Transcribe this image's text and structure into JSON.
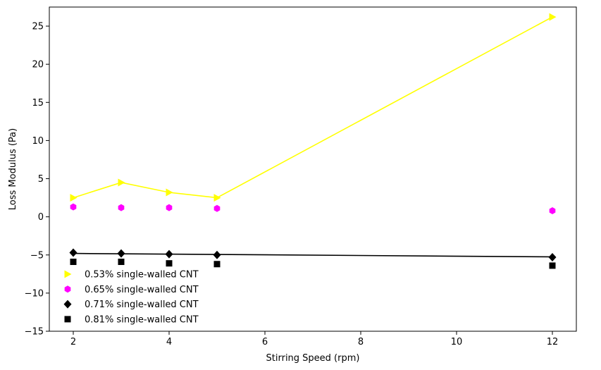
{
  "chart_data": {
    "type": "scatter",
    "xlabel": "Stirring Speed (rpm)",
    "ylabel": "Loss Modulus (Pa)",
    "xlim": [
      1.5,
      12.5
    ],
    "ylim": [
      -15,
      27.5
    ],
    "xticks": [
      2,
      4,
      6,
      8,
      10,
      12
    ],
    "xtick_labels": [
      "2",
      "4",
      "6",
      "8",
      "10",
      "12"
    ],
    "yticks": [
      -15,
      -10,
      -5,
      0,
      5,
      10,
      15,
      20,
      25
    ],
    "ytick_labels": [
      "−15",
      "−10",
      "−5",
      "0",
      "5",
      "10",
      "15",
      "20",
      "25"
    ],
    "grid": false,
    "legend_position": "lower-left",
    "series": [
      {
        "name": "0.53% single-walled CNT",
        "color": "#ffff00",
        "marker": "triangle-right",
        "line": "connected",
        "x": [
          2,
          3,
          4,
          5,
          12
        ],
        "y": [
          2.5,
          4.5,
          3.2,
          2.5,
          26.2
        ]
      },
      {
        "name": "0.65% single-walled CNT",
        "color": "#ff00ff",
        "marker": "hexagon",
        "line": "none",
        "x": [
          2,
          3,
          4,
          5,
          12
        ],
        "y": [
          1.3,
          1.2,
          1.2,
          1.1,
          0.8
        ]
      },
      {
        "name": "0.71% single-walled CNT",
        "color": "#000000",
        "marker": "diamond",
        "line": "fit",
        "fit_y": [
          -4.8,
          -5.25
        ],
        "x": [
          2,
          3,
          4,
          5,
          12
        ],
        "y": [
          -4.7,
          -4.8,
          -4.9,
          -5.0,
          -5.3
        ]
      },
      {
        "name": "0.81% single-walled CNT",
        "color": "#000000",
        "marker": "square",
        "line": "none",
        "x": [
          2,
          3,
          4,
          5,
          12
        ],
        "y": [
          -5.9,
          -5.9,
          -6.1,
          -6.2,
          -6.4
        ]
      }
    ]
  }
}
